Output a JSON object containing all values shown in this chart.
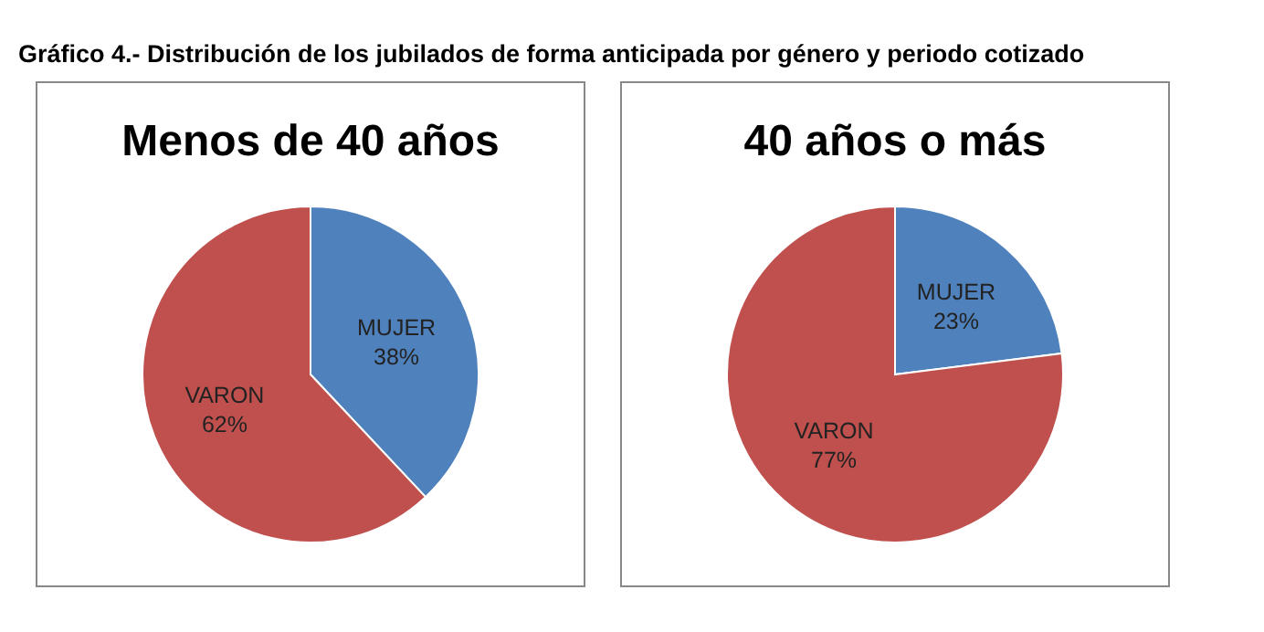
{
  "chart_data": [
    {
      "type": "other",
      "title": "Gráfico 4.- Distribución de los jubilados de forma anticipada por género y periodo cotizado"
    },
    {
      "type": "pie",
      "title": "Menos de 40 años",
      "categories": [
        "MUJER",
        "VARON"
      ],
      "values": [
        38,
        62
      ],
      "colors": [
        "#4f81bd",
        "#c0504d"
      ],
      "value_labels": [
        "38%",
        "62%"
      ]
    },
    {
      "type": "pie",
      "title": "40 años o más",
      "categories": [
        "MUJER",
        "VARON"
      ],
      "values": [
        23,
        77
      ],
      "colors": [
        "#4f81bd",
        "#c0504d"
      ],
      "value_labels": [
        "23%",
        "77%"
      ]
    }
  ]
}
